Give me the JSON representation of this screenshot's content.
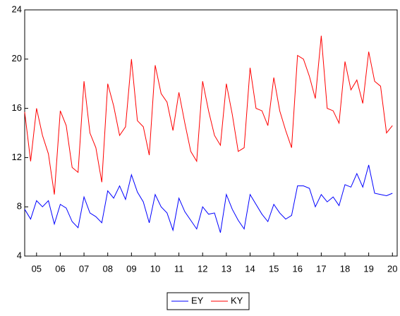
{
  "chart_data": {
    "type": "line",
    "x": [
      2004.5,
      2004.75,
      2005,
      2005.25,
      2005.5,
      2005.75,
      2006,
      2006.25,
      2006.5,
      2006.75,
      2007,
      2007.25,
      2007.5,
      2007.75,
      2008,
      2008.25,
      2008.5,
      2008.75,
      2009,
      2009.25,
      2009.5,
      2009.75,
      2010,
      2010.25,
      2010.5,
      2010.75,
      2011,
      2011.25,
      2011.5,
      2011.75,
      2012,
      2012.25,
      2012.5,
      2012.75,
      2013,
      2013.25,
      2013.5,
      2013.75,
      2014,
      2014.25,
      2014.5,
      2014.75,
      2015,
      2015.25,
      2015.5,
      2015.75,
      2016,
      2016.25,
      2016.5,
      2016.75,
      2017,
      2017.25,
      2017.5,
      2017.75,
      2018,
      2018.25,
      2018.5,
      2018.75,
      2019,
      2019.25,
      2019.5,
      2019.75,
      2020
    ],
    "series": [
      {
        "name": "EY",
        "color": "#0000ff",
        "values": [
          7.8,
          7.0,
          8.5,
          8.0,
          8.5,
          6.6,
          8.2,
          7.9,
          6.8,
          6.3,
          8.8,
          7.5,
          7.2,
          6.7,
          9.3,
          8.7,
          9.7,
          8.6,
          10.6,
          9.2,
          8.4,
          6.7,
          9.0,
          8.0,
          7.5,
          6.1,
          8.7,
          7.6,
          6.9,
          6.2,
          8.0,
          7.4,
          7.5,
          5.9,
          9.0,
          7.8,
          6.9,
          6.2,
          9.0,
          8.2,
          7.4,
          6.8,
          8.2,
          7.5,
          7.0,
          7.3,
          9.7,
          9.7,
          9.5,
          8.0,
          9.0,
          8.4,
          8.8,
          8.1,
          9.8,
          9.6,
          10.7,
          9.6,
          11.4,
          9.1,
          9.0,
          8.9,
          9.1
        ]
      },
      {
        "name": "KY",
        "color": "#ff0000",
        "values": [
          15.7,
          11.7,
          16.0,
          13.8,
          12.3,
          9.0,
          15.8,
          14.6,
          11.2,
          10.8,
          18.2,
          14.0,
          12.8,
          10.0,
          18.0,
          16.2,
          13.8,
          14.5,
          20.0,
          15.0,
          14.5,
          12.2,
          19.5,
          17.2,
          16.5,
          14.2,
          17.3,
          14.8,
          12.5,
          11.7,
          18.2,
          15.8,
          13.8,
          13.0,
          18.0,
          15.5,
          12.5,
          12.8,
          19.3,
          16.0,
          15.8,
          14.6,
          18.5,
          15.8,
          14.2,
          12.8,
          20.3,
          20.0,
          18.6,
          16.8,
          21.9,
          16.0,
          15.8,
          14.8,
          19.8,
          17.5,
          18.3,
          16.4,
          20.6,
          18.2,
          17.8,
          14.0,
          14.6
        ]
      }
    ],
    "xlim": [
      2004.5,
      2020.2
    ],
    "xticks": [
      {
        "value": 2005,
        "label": "05"
      },
      {
        "value": 2006,
        "label": "06"
      },
      {
        "value": 2007,
        "label": "07"
      },
      {
        "value": 2008,
        "label": "08"
      },
      {
        "value": 2009,
        "label": "09"
      },
      {
        "value": 2010,
        "label": "10"
      },
      {
        "value": 2011,
        "label": "11"
      },
      {
        "value": 2012,
        "label": "12"
      },
      {
        "value": 2013,
        "label": "13"
      },
      {
        "value": 2014,
        "label": "14"
      },
      {
        "value": 2015,
        "label": "15"
      },
      {
        "value": 2016,
        "label": "16"
      },
      {
        "value": 2017,
        "label": "17"
      },
      {
        "value": 2018,
        "label": "18"
      },
      {
        "value": 2019,
        "label": "19"
      },
      {
        "value": 2020,
        "label": "20"
      }
    ],
    "ylim": [
      4,
      24
    ],
    "yticks": [
      4,
      8,
      12,
      16,
      20,
      24
    ],
    "grid": false,
    "legend": "bottom"
  }
}
